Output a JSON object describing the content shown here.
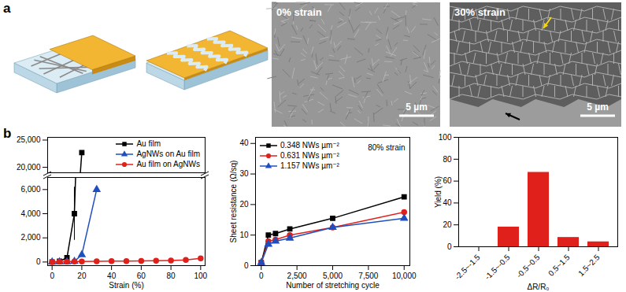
{
  "panel_a": {
    "label": "a",
    "images": [
      {
        "label": "0% strain",
        "scale_bar": "5 µm"
      },
      {
        "label": "30% strain",
        "scale_bar": "5 µm"
      }
    ]
  },
  "panel_b": {
    "label": "b"
  },
  "chart_data": [
    {
      "type": "line",
      "xlabel": "Strain (%)",
      "xlim": [
        -3,
        103
      ],
      "xticks": [
        0,
        20,
        40,
        60,
        80,
        100
      ],
      "y_segments": [
        {
          "ylim": [
            -300,
            7000
          ],
          "yticks": [
            0,
            {
              "value": 2000,
              "label": "2,000"
            },
            {
              "value": 4000,
              "label": "4,000"
            },
            {
              "value": 6000,
              "label": "6,000"
            }
          ]
        },
        {
          "ylim": [
            19000,
            25500
          ],
          "yticks": [
            {
              "value": 20000,
              "label": "20,000"
            },
            {
              "value": 25000,
              "label": "25,000"
            }
          ]
        }
      ],
      "legend": "upper right",
      "series": [
        {
          "name": "Au film",
          "color": "#000000",
          "marker": "square",
          "x": [
            0,
            5,
            10,
            15,
            20
          ],
          "values": [
            0,
            60,
            350,
            4000,
            22700
          ],
          "errors": [
            null,
            null,
            null,
            2200,
            null
          ]
        },
        {
          "name": "AgNWs on Au film",
          "color": "#1f4fbf",
          "marker": "triangle",
          "x": [
            0,
            5,
            10,
            15,
            20,
            30
          ],
          "values": [
            0,
            10,
            20,
            50,
            600,
            6000
          ],
          "errors": [
            null,
            null,
            null,
            null,
            null,
            null
          ]
        },
        {
          "name": "Au film on AgNWs",
          "color": "#e0201b",
          "marker": "circle",
          "x": [
            0,
            5,
            10,
            15,
            20,
            30,
            40,
            50,
            60,
            70,
            80,
            90,
            100
          ],
          "values": [
            0,
            20,
            30,
            40,
            50,
            60,
            70,
            80,
            90,
            100,
            130,
            180,
            300
          ],
          "errors": [
            null,
            null,
            null,
            null,
            null,
            null,
            null,
            null,
            null,
            null,
            null,
            null,
            null
          ]
        }
      ]
    },
    {
      "type": "line",
      "xlabel": "Number of stretching cycle",
      "ylabel": "Sheet resistance (Ω/sq)",
      "xlim": [
        -400,
        10400
      ],
      "xticks": [
        0,
        {
          "value": 2500,
          "label": "2,500"
        },
        {
          "value": 5000,
          "label": "5,000"
        },
        {
          "value": 7500,
          "label": "7,500"
        },
        {
          "value": 10000,
          "label": "10,000"
        }
      ],
      "ylim": [
        0,
        42
      ],
      "yticks": [
        0,
        10,
        20,
        30,
        40
      ],
      "annotation": "80% strain",
      "legend": "upper left",
      "x": [
        0,
        500,
        1000,
        2000,
        5000,
        10000
      ],
      "series": [
        {
          "name": "0.348 NWs µm⁻²",
          "color": "#000000",
          "marker": "square",
          "values": [
            1,
            10,
            10.5,
            12,
            15.5,
            22.5
          ]
        },
        {
          "name": "0.631 NWs µm⁻²",
          "color": "#e0201b",
          "marker": "circle",
          "values": [
            1,
            8,
            8.5,
            10,
            12.5,
            17.5
          ]
        },
        {
          "name": "1.157 NWs µm⁻²",
          "color": "#1f4fbf",
          "marker": "triangle",
          "values": [
            1,
            7,
            8,
            9,
            12.5,
            15.5
          ]
        }
      ]
    },
    {
      "type": "bar",
      "xlabel": "ΔR/R₀",
      "ylabel": "Yield (%)",
      "categories": [
        "-2.5~-1.5",
        "-1.5~-0.5",
        "-0.5~0.5",
        "0.5~1.5",
        "1.5~2.5"
      ],
      "values": [
        0,
        18,
        68,
        8.5,
        4.5
      ],
      "color": "#e0201b",
      "ylim": [
        0,
        100
      ],
      "yticks": [
        0,
        20,
        40,
        60,
        80,
        100
      ]
    }
  ]
}
